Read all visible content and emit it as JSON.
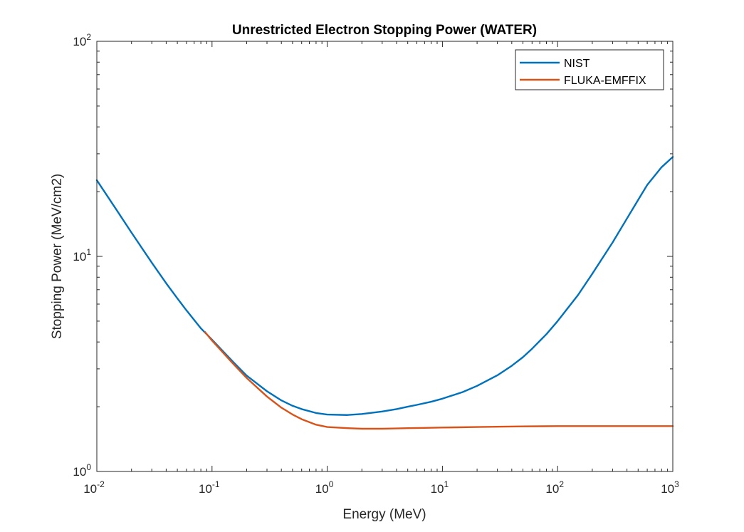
{
  "chart_data": {
    "type": "line",
    "title": "Unrestricted Electron Stopping Power (WATER)",
    "xlabel": "Energy (MeV)",
    "ylabel": "Stopping Power (MeV/cm2)",
    "xscale": "log",
    "yscale": "log",
    "xlim": [
      0.01,
      1000
    ],
    "ylim": [
      1,
      100
    ],
    "x_ticks": [
      {
        "base": "10",
        "exp": "-2"
      },
      {
        "base": "10",
        "exp": "-1"
      },
      {
        "base": "10",
        "exp": "0"
      },
      {
        "base": "10",
        "exp": "1"
      },
      {
        "base": "10",
        "exp": "2"
      },
      {
        "base": "10",
        "exp": "3"
      }
    ],
    "y_ticks": [
      {
        "base": "10",
        "exp": "0"
      },
      {
        "base": "10",
        "exp": "1"
      },
      {
        "base": "10",
        "exp": "2"
      }
    ],
    "grid": false,
    "legend": "top-right",
    "series": [
      {
        "name": "NIST",
        "color": "#0072BD",
        "x": [
          0.01,
          0.015,
          0.02,
          0.03,
          0.04,
          0.05,
          0.06,
          0.08,
          0.1,
          0.15,
          0.2,
          0.3,
          0.4,
          0.5,
          0.6,
          0.8,
          1,
          1.5,
          2,
          3,
          4,
          5,
          6,
          8,
          10,
          15,
          20,
          30,
          40,
          50,
          60,
          80,
          100,
          150,
          200,
          300,
          400,
          500,
          600,
          800,
          1000
        ],
        "y": [
          22.6,
          16.3,
          12.9,
          9.35,
          7.5,
          6.38,
          5.61,
          4.63,
          4.1,
          3.26,
          2.79,
          2.36,
          2.14,
          2.02,
          1.95,
          1.87,
          1.84,
          1.83,
          1.85,
          1.9,
          1.95,
          2.0,
          2.04,
          2.11,
          2.18,
          2.34,
          2.5,
          2.8,
          3.1,
          3.4,
          3.72,
          4.35,
          5.0,
          6.6,
          8.3,
          11.6,
          15.0,
          18.3,
          21.5,
          26.0,
          29.0
        ]
      },
      {
        "name": "FLUKA-EMFFIX",
        "color": "#D95319",
        "x": [
          0.087,
          0.1,
          0.15,
          0.2,
          0.3,
          0.4,
          0.5,
          0.6,
          0.8,
          1,
          1.5,
          2,
          3,
          4,
          5,
          7,
          10,
          20,
          50,
          100,
          200,
          500,
          1000
        ],
        "y": [
          4.45,
          4.06,
          3.2,
          2.72,
          2.23,
          1.98,
          1.84,
          1.75,
          1.65,
          1.61,
          1.59,
          1.58,
          1.58,
          1.585,
          1.59,
          1.595,
          1.6,
          1.61,
          1.62,
          1.625,
          1.625,
          1.625,
          1.625
        ]
      }
    ]
  }
}
